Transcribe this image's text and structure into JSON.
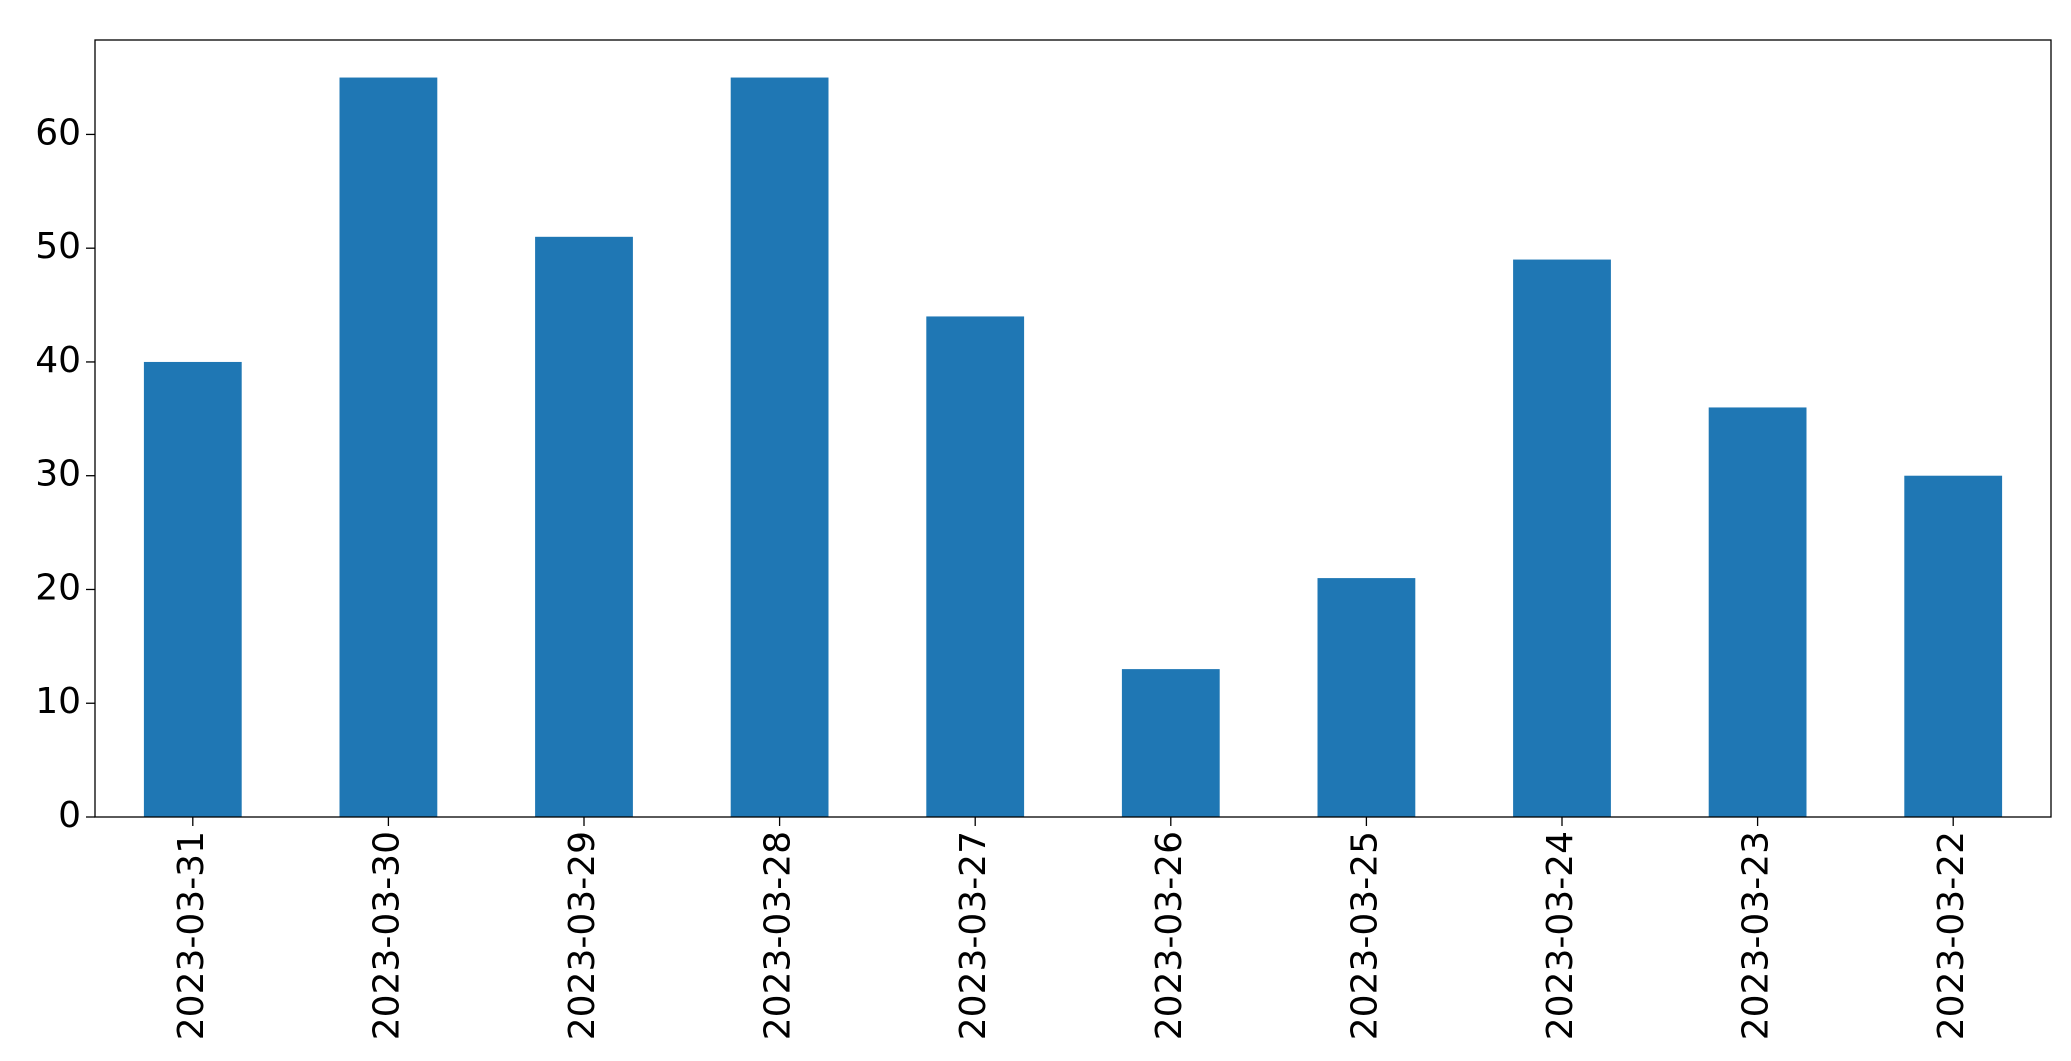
{
  "chart_data": {
    "type": "bar",
    "categories": [
      "2023-03-31",
      "2023-03-30",
      "2023-03-29",
      "2023-03-28",
      "2023-03-27",
      "2023-03-26",
      "2023-03-25",
      "2023-03-24",
      "2023-03-23",
      "2023-03-22"
    ],
    "values": [
      40,
      65,
      51,
      65,
      44,
      13,
      21,
      49,
      36,
      30
    ],
    "color": "#1f77b4",
    "ylim": [
      0,
      68.3
    ],
    "yticks": [
      0,
      10,
      20,
      30,
      40,
      50,
      60
    ],
    "grid": false
  }
}
